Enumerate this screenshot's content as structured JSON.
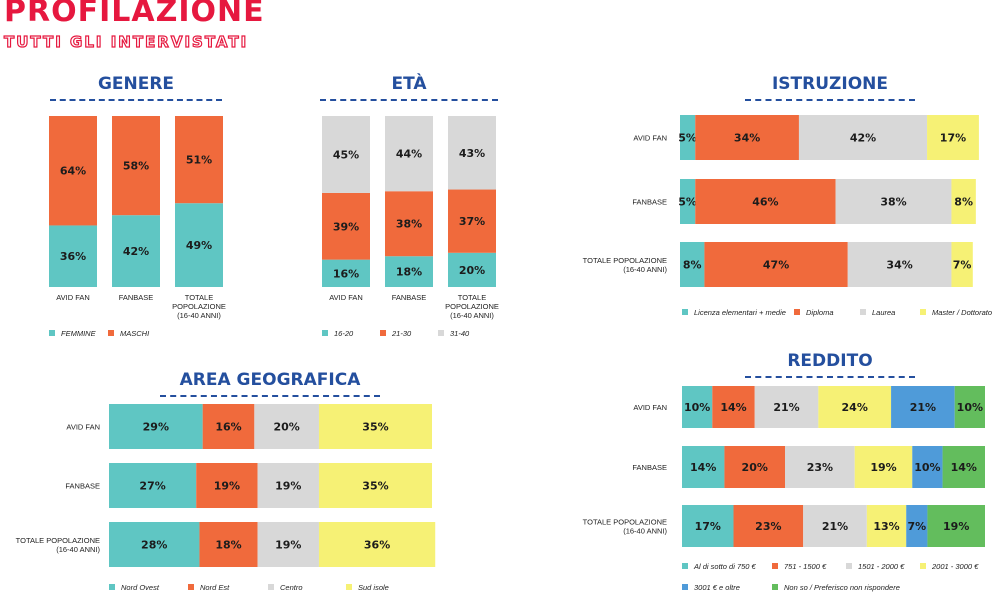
{
  "header": {
    "title": "PROFILAZIONE",
    "subtitle": "TUTTI GLI INTERVISTATI"
  },
  "colors": {
    "teal": "#5fc6c3",
    "orange": "#f06a3c",
    "grey": "#d8d8d8",
    "yellow": "#f6f175",
    "blue": "#4f9bd9",
    "green": "#63bd5d",
    "title_blue": "#244f9e",
    "brand_red": "#e6183f"
  },
  "sections": {
    "genere": "GENERE",
    "eta": "ETÀ",
    "istruzione": "ISTRUZIONE",
    "area": "AREA GEOGRAFICA",
    "reddito": "REDDITO"
  },
  "chart_data": [
    {
      "id": "genere",
      "type": "bar",
      "orientation": "vertical",
      "stacked": true,
      "title": "GENERE",
      "categories": [
        "AVID FAN",
        "FANBASE",
        "TOTALE POPOLAZIONE (16-40 ANNI)"
      ],
      "series": [
        {
          "name": "FEMMINE",
          "color": "#5fc6c3",
          "values": [
            36,
            42,
            49
          ]
        },
        {
          "name": "MASCHI",
          "color": "#f06a3c",
          "values": [
            64,
            58,
            51
          ]
        }
      ],
      "ylim": [
        0,
        100
      ],
      "legend": "bottom"
    },
    {
      "id": "eta",
      "type": "bar",
      "orientation": "vertical",
      "stacked": true,
      "title": "ETÀ",
      "categories": [
        "AVID FAN",
        "FANBASE",
        "TOTALE POPOLAZIONE (16-40 ANNI)"
      ],
      "series": [
        {
          "name": "16-20",
          "color": "#5fc6c3",
          "values": [
            16,
            18,
            20
          ]
        },
        {
          "name": "21-30",
          "color": "#f06a3c",
          "values": [
            39,
            38,
            37
          ]
        },
        {
          "name": "31-40",
          "color": "#d8d8d8",
          "values": [
            45,
            44,
            43
          ]
        }
      ],
      "ylim": [
        0,
        100
      ],
      "legend": "bottom"
    },
    {
      "id": "istruzione",
      "type": "bar",
      "orientation": "horizontal",
      "stacked": true,
      "title": "ISTRUZIONE",
      "categories": [
        "AVID FAN",
        "FANBASE",
        "TOTALE POPOLAZIONE (16-40 ANNI)"
      ],
      "series": [
        {
          "name": "Licenza elementari + medie",
          "color": "#5fc6c3",
          "values": [
            5,
            5,
            8
          ]
        },
        {
          "name": "Diploma",
          "color": "#f06a3c",
          "values": [
            34,
            46,
            47
          ]
        },
        {
          "name": "Laurea",
          "color": "#d8d8d8",
          "values": [
            42,
            38,
            34
          ]
        },
        {
          "name": "Master / Dottorato",
          "color": "#f6f175",
          "values": [
            17,
            8,
            7
          ]
        }
      ],
      "xlim": [
        0,
        100
      ],
      "legend": "bottom"
    },
    {
      "id": "area",
      "type": "bar",
      "orientation": "horizontal",
      "stacked": true,
      "title": "AREA GEOGRAFICA",
      "categories": [
        "AVID FAN",
        "FANBASE",
        "TOTALE POPOLAZIONE (16-40 ANNI)"
      ],
      "series": [
        {
          "name": "Nord Ovest",
          "color": "#5fc6c3",
          "values": [
            29,
            27,
            28
          ]
        },
        {
          "name": "Nord Est",
          "color": "#f06a3c",
          "values": [
            16,
            19,
            18
          ]
        },
        {
          "name": "Centro",
          "color": "#d8d8d8",
          "values": [
            20,
            19,
            19
          ]
        },
        {
          "name": "Sud isole",
          "color": "#f6f175",
          "values": [
            35,
            35,
            36
          ]
        }
      ],
      "xlim": [
        0,
        100
      ],
      "legend": "bottom"
    },
    {
      "id": "reddito",
      "type": "bar",
      "orientation": "horizontal",
      "stacked": true,
      "title": "REDDITO",
      "categories": [
        "AVID FAN",
        "FANBASE",
        "TOTALE POPOLAZIONE (16-40 ANNI)"
      ],
      "series": [
        {
          "name": "Al di sotto di 750 €",
          "color": "#5fc6c3",
          "values": [
            10,
            14,
            17
          ]
        },
        {
          "name": "751 - 1500 €",
          "color": "#f06a3c",
          "values": [
            14,
            20,
            23
          ]
        },
        {
          "name": "1501 - 2000 €",
          "color": "#d8d8d8",
          "values": [
            21,
            23,
            21
          ]
        },
        {
          "name": "2001 - 3000 €",
          "color": "#f6f175",
          "values": [
            24,
            19,
            13
          ]
        },
        {
          "name": "3001 € e oltre",
          "color": "#4f9bd9",
          "values": [
            21,
            10,
            7
          ]
        },
        {
          "name": "Non so / Preferisco non rispondere",
          "color": "#63bd5d",
          "values": [
            10,
            14,
            19
          ]
        }
      ],
      "xlim": [
        0,
        100
      ],
      "legend": "bottom"
    }
  ]
}
